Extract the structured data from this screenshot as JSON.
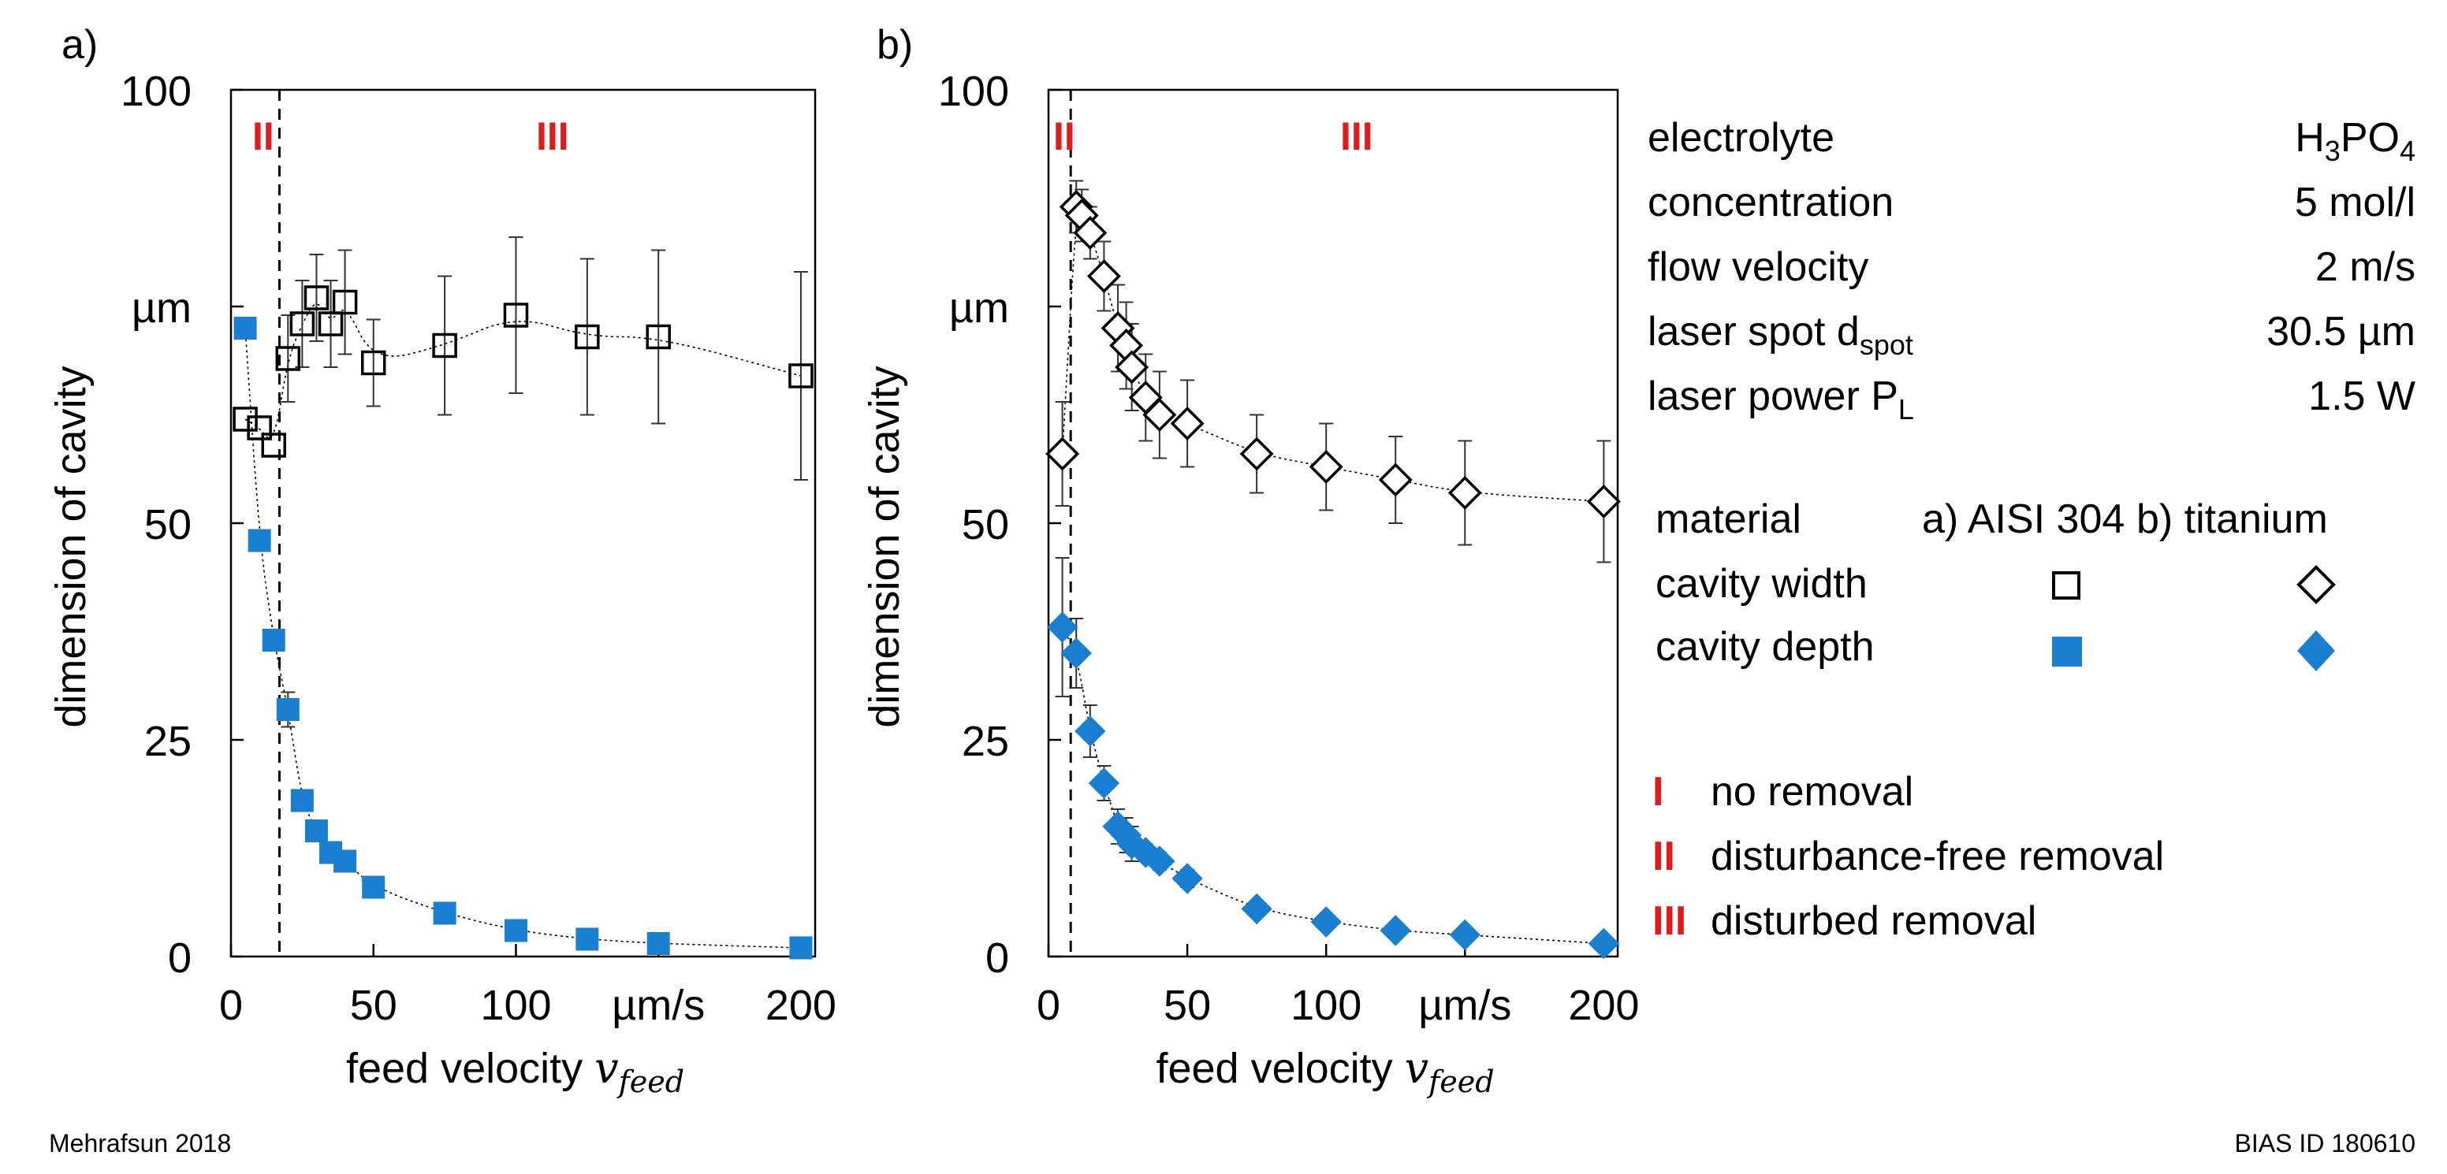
{
  "panels": [
    {
      "label": "a)",
      "material": "AISI 304",
      "regime_labels": [
        "II",
        "III"
      ],
      "boundary_x": 17,
      "y_tick_labels": [
        "0",
        "25",
        "50",
        "µm",
        "100"
      ],
      "x_tick_labels": [
        "0",
        "50",
        "100",
        "µm/s",
        "200"
      ],
      "ylabel": "dimension of cavity",
      "xlabel": "feed velocity",
      "xlabel_symbol": "v",
      "xlabel_sub": "feed"
    },
    {
      "label": "b)",
      "material": "titanium",
      "regime_labels": [
        "II",
        "III"
      ],
      "boundary_x": 8,
      "y_tick_labels": [
        "0",
        "25",
        "50",
        "µm",
        "100"
      ],
      "x_tick_labels": [
        "0",
        "50",
        "100",
        "µm/s",
        "200"
      ],
      "ylabel": "dimension of cavity",
      "xlabel": "feed velocity",
      "xlabel_symbol": "v",
      "xlabel_sub": "feed"
    }
  ],
  "chart_data": [
    {
      "type": "scatter",
      "panel": "a)",
      "material": "AISI 304",
      "xlabel": "feed velocity v_feed (µm/s)",
      "ylabel": "dimension of cavity (µm)",
      "xlim": [
        0,
        205
      ],
      "ylim": [
        0,
        100
      ],
      "x_ticks": [
        0,
        50,
        100,
        150,
        200
      ],
      "y_ticks": [
        0,
        25,
        50,
        75,
        100
      ],
      "regime_boundary_x": 17,
      "series": [
        {
          "name": "cavity width",
          "marker": "square-open",
          "x": [
            5,
            10,
            15,
            20,
            25,
            30,
            35,
            40,
            50,
            75,
            100,
            125,
            150,
            200
          ],
          "y": [
            62,
            61,
            59,
            69,
            73,
            76,
            73,
            75.5,
            68.5,
            70.5,
            74,
            71.5,
            71.5,
            67
          ],
          "error": [
            0,
            0,
            0,
            5,
            5,
            5,
            5,
            6,
            5,
            8,
            9,
            9,
            10,
            12
          ]
        },
        {
          "name": "cavity depth",
          "marker": "square-filled",
          "color": "#1a7fd1",
          "x": [
            5,
            10,
            15,
            20,
            25,
            30,
            35,
            40,
            50,
            75,
            100,
            125,
            150,
            200
          ],
          "y": [
            72.5,
            48,
            36.5,
            28.5,
            18,
            14.5,
            12,
            11,
            8,
            5,
            3,
            2,
            1.5,
            1
          ],
          "error": [
            1,
            0,
            0,
            2,
            1,
            0,
            0,
            0,
            0,
            0,
            0,
            0,
            0,
            0
          ]
        }
      ]
    },
    {
      "type": "scatter",
      "panel": "b)",
      "material": "titanium",
      "xlabel": "feed velocity v_feed (µm/s)",
      "ylabel": "dimension of cavity (µm)",
      "xlim": [
        0,
        205
      ],
      "ylim": [
        0,
        100
      ],
      "x_ticks": [
        0,
        50,
        100,
        150,
        200
      ],
      "y_ticks": [
        0,
        25,
        50,
        75,
        100
      ],
      "regime_boundary_x": 8,
      "series": [
        {
          "name": "cavity width",
          "marker": "diamond-open",
          "x": [
            5,
            10,
            12,
            15,
            20,
            25,
            28,
            30,
            35,
            40,
            50,
            75,
            100,
            125,
            150,
            200
          ],
          "y": [
            58,
            86.5,
            85.5,
            83.5,
            78.5,
            72.5,
            70.5,
            68,
            64.5,
            62.5,
            61.5,
            58,
            56.5,
            55,
            53.5,
            52.5
          ],
          "error": [
            6,
            3,
            3,
            3,
            4,
            5,
            5,
            5,
            5,
            5,
            5,
            4.5,
            5,
            5,
            6,
            7
          ]
        },
        {
          "name": "cavity depth",
          "marker": "diamond-filled",
          "color": "#1a7fd1",
          "x": [
            5,
            10,
            15,
            20,
            25,
            28,
            30,
            35,
            40,
            50,
            75,
            100,
            125,
            150,
            200
          ],
          "y": [
            38,
            35,
            26,
            20,
            15,
            14,
            13,
            12,
            11,
            9,
            5.5,
            4,
            3,
            2.5,
            1.5
          ],
          "error": [
            8,
            4,
            3,
            2,
            2,
            2,
            2,
            1,
            1,
            1,
            0,
            0,
            0,
            0,
            0
          ]
        }
      ]
    }
  ],
  "params": {
    "rows": [
      {
        "name": "electrolyte",
        "value": "H",
        "value_sub": "3",
        "value_tail": "PO",
        "value_sub2": "4"
      },
      {
        "name": "concentration",
        "value": "5 mol/l"
      },
      {
        "name": "flow velocity",
        "value": "2 m/s"
      },
      {
        "name": "laser spot d",
        "name_sub": "spot",
        "value": "30.5 µm"
      },
      {
        "name": "laser power P",
        "name_sub": "L",
        "value": "1.5 W"
      }
    ]
  },
  "legend": {
    "header_label": "material",
    "header_a": "a) AISI 304",
    "header_b": "b) titanium",
    "width_label": "cavity width",
    "depth_label": "cavity depth"
  },
  "regimes": [
    {
      "numeral": "I",
      "label": "no removal"
    },
    {
      "numeral": "II",
      "label": "disturbance-free removal"
    },
    {
      "numeral": "III",
      "label": "disturbed removal"
    }
  ],
  "footer": {
    "left": "Mehrafsun 2018",
    "right": "BIAS ID 180610"
  },
  "colors": {
    "accent_red": "#e01b1b",
    "depth_blue": "#1a7fd1",
    "text": "#000000"
  }
}
